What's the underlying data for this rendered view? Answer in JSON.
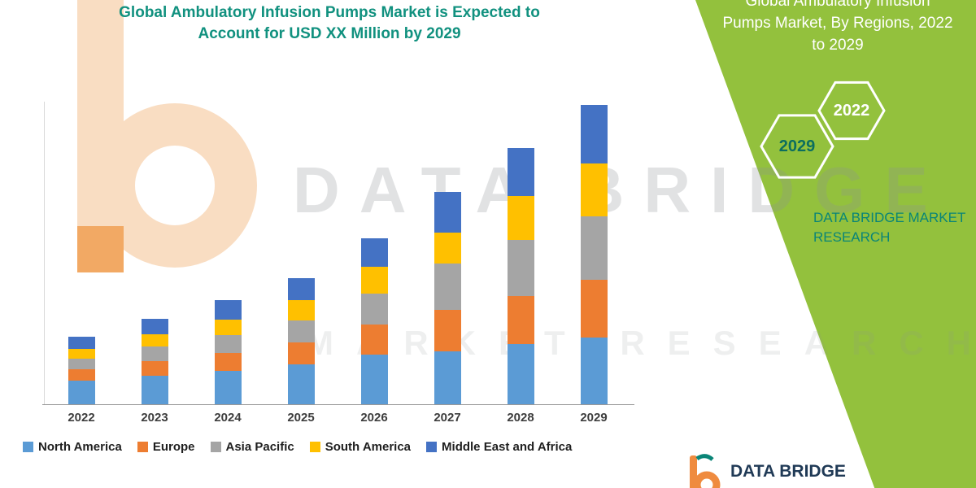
{
  "title": {
    "line1": "Global Ambulatory Infusion Pumps Market is Expected to",
    "line2": "Account for USD XX Million by 2029"
  },
  "panel": {
    "heading_lines": [
      "Global Ambulatory Infusion",
      "Pumps Market, By Regions, 2022",
      "to 2029"
    ],
    "hex_back_label": "2022",
    "hex_front_label": "2029",
    "brand_line1": "DATA BRIDGE MARKET",
    "brand_line2": "RESEARCH",
    "green": "#93c13d",
    "teal": "#0a8577"
  },
  "watermark": {
    "line1": "DATA BRIDGE",
    "line2": "MARKET RESEARCH"
  },
  "footer_logo": {
    "text": "DATA BRIDGE"
  },
  "chart_data": {
    "type": "bar",
    "stacked": true,
    "title": "Global Ambulatory Infusion Pumps Market is Expected to Account for USD XX Million by 2029",
    "xlabel": "",
    "ylabel": "",
    "categories": [
      "2022",
      "2023",
      "2024",
      "2025",
      "2026",
      "2027",
      "2028",
      "2029"
    ],
    "series": [
      {
        "name": "North America",
        "color": "#5B9BD5",
        "values": [
          28,
          34,
          40,
          48,
          60,
          64,
          72,
          80
        ]
      },
      {
        "name": "Europe",
        "color": "#ED7D31",
        "values": [
          14,
          18,
          22,
          26,
          36,
          50,
          58,
          70
        ]
      },
      {
        "name": "Asia Pacific",
        "color": "#A5A5A5",
        "values": [
          13,
          17,
          21,
          27,
          37,
          55,
          68,
          76
        ]
      },
      {
        "name": "South America",
        "color": "#FFC000",
        "values": [
          12,
          15,
          19,
          24,
          32,
          38,
          52,
          64
        ]
      },
      {
        "name": "Middle East and Africa",
        "color": "#4472C4",
        "values": [
          14,
          19,
          23,
          27,
          35,
          48,
          58,
          70
        ]
      }
    ],
    "values_note": "No numeric axis shown in figure; values are relative units estimated from bar heights",
    "legend_position": "bottom",
    "grid": false
  }
}
